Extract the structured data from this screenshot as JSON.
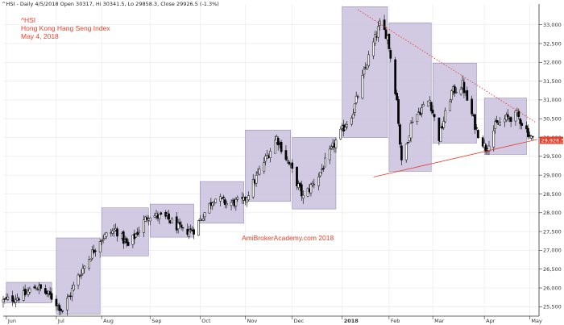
{
  "header": {
    "quote_line": "^HSI - Daily 4/5/2018 Open 30317, Hi 30341.5, Lo 29858.3, Close 29926.5 (-1.3%)",
    "symbol": "^HSI",
    "name": "Hong Kong Hang Seng Index",
    "date": "May 4, 2018"
  },
  "watermark": "AmiBrokerAcademy.com  2018",
  "last_price_label": "29,926.5",
  "colors": {
    "box_fill": "#c9c1dd",
    "box_stroke": "#8a7fb0",
    "up_candle": "#ffffff",
    "down_candle": "#000000",
    "trendline": "#e8402c",
    "price_tag": "#e8402c",
    "grid": "#e8e8e8"
  },
  "chart_data": {
    "type": "candlestick",
    "title": "Hong Kong Hang Seng Index",
    "ylim": [
      25250,
      33550
    ],
    "y_ticks": [
      25500,
      26000,
      26500,
      27000,
      27500,
      28000,
      28500,
      29000,
      29500,
      30000,
      30500,
      31000,
      31500,
      32000,
      32500,
      33000
    ],
    "y_tick_labels": [
      "25,500",
      "26,000",
      "26,500",
      "27,000",
      "27,500",
      "28,000",
      "28,500",
      "29,000",
      "29,500",
      "30,000",
      "30,500",
      "31,000",
      "31,500",
      "32,000",
      "32,500",
      "33,000"
    ],
    "x_domain": [
      "2017-05-30",
      "2018-05-08"
    ],
    "x_ticks": [
      {
        "label": "Jun",
        "date": "2017-06-01"
      },
      {
        "label": "Jul",
        "date": "2017-07-03"
      },
      {
        "label": "Aug",
        "date": "2017-08-01"
      },
      {
        "label": "Sep",
        "date": "2017-09-01"
      },
      {
        "label": "Oct",
        "date": "2017-10-03"
      },
      {
        "label": "Nov",
        "date": "2017-11-01"
      },
      {
        "label": "Dec",
        "date": "2017-12-01"
      },
      {
        "label": "2018",
        "date": "2018-01-02"
      },
      {
        "label": "Feb",
        "date": "2018-02-01"
      },
      {
        "label": "Mar",
        "date": "2018-03-01"
      },
      {
        "label": "Apr",
        "date": "2018-04-03"
      },
      {
        "label": "May",
        "date": "2018-05-02"
      }
    ],
    "range_boxes": [
      {
        "start": "2017-06-01",
        "end": "2017-06-30",
        "low": 25600,
        "high": 26150
      },
      {
        "start": "2017-07-03",
        "end": "2017-07-31",
        "low": 25300,
        "high": 27330
      },
      {
        "start": "2017-08-01",
        "end": "2017-08-31",
        "low": 26850,
        "high": 28130
      },
      {
        "start": "2017-09-01",
        "end": "2017-09-29",
        "low": 27350,
        "high": 28230
      },
      {
        "start": "2017-10-03",
        "end": "2017-10-31",
        "low": 27720,
        "high": 28830
      },
      {
        "start": "2017-11-01",
        "end": "2017-11-30",
        "low": 28300,
        "high": 30200
      },
      {
        "start": "2017-12-01",
        "end": "2017-12-29",
        "low": 28100,
        "high": 30000
      },
      {
        "start": "2018-01-02",
        "end": "2018-01-31",
        "low": 30000,
        "high": 33480
      },
      {
        "start": "2018-02-01",
        "end": "2018-02-28",
        "low": 29100,
        "high": 33050
      },
      {
        "start": "2018-03-01",
        "end": "2018-03-29",
        "low": 29850,
        "high": 31980
      },
      {
        "start": "2018-04-03",
        "end": "2018-04-30",
        "low": 29550,
        "high": 31050
      }
    ],
    "trendlines": [
      {
        "style": "dotted",
        "start": {
          "date": "2018-01-12",
          "value": 33400
        },
        "end": {
          "date": "2018-05-06",
          "value": 30400
        }
      },
      {
        "style": "solid",
        "start": {
          "date": "2018-01-22",
          "value": 28950
        },
        "end": {
          "date": "2018-05-07",
          "value": 29950
        }
      }
    ],
    "monthly_path": [
      {
        "date": "2017-05-30",
        "value": 25650
      },
      {
        "date": "2017-06-12",
        "value": 25800
      },
      {
        "date": "2017-06-20",
        "value": 26050
      },
      {
        "date": "2017-06-30",
        "value": 25750
      },
      {
        "date": "2017-07-07",
        "value": 25400
      },
      {
        "date": "2017-07-17",
        "value": 26300
      },
      {
        "date": "2017-07-31",
        "value": 27300
      },
      {
        "date": "2017-08-10",
        "value": 27550
      },
      {
        "date": "2017-08-18",
        "value": 27100
      },
      {
        "date": "2017-08-31",
        "value": 27950
      },
      {
        "date": "2017-09-12",
        "value": 27850
      },
      {
        "date": "2017-09-22",
        "value": 27500
      },
      {
        "date": "2017-09-29",
        "value": 27550
      },
      {
        "date": "2017-10-12",
        "value": 28400
      },
      {
        "date": "2017-10-20",
        "value": 28250
      },
      {
        "date": "2017-10-31",
        "value": 28300
      },
      {
        "date": "2017-11-10",
        "value": 29100
      },
      {
        "date": "2017-11-21",
        "value": 30000
      },
      {
        "date": "2017-11-30",
        "value": 29200
      },
      {
        "date": "2017-12-08",
        "value": 28400
      },
      {
        "date": "2017-12-18",
        "value": 29000
      },
      {
        "date": "2017-12-29",
        "value": 29900
      },
      {
        "date": "2018-01-09",
        "value": 30700
      },
      {
        "date": "2018-01-18",
        "value": 32000
      },
      {
        "date": "2018-01-26",
        "value": 33000
      },
      {
        "date": "2018-01-31",
        "value": 32700
      },
      {
        "date": "2018-02-06",
        "value": 31000
      },
      {
        "date": "2018-02-09",
        "value": 29300
      },
      {
        "date": "2018-02-16",
        "value": 30500
      },
      {
        "date": "2018-02-27",
        "value": 31000
      },
      {
        "date": "2018-03-05",
        "value": 30000
      },
      {
        "date": "2018-03-13",
        "value": 31200
      },
      {
        "date": "2018-03-20",
        "value": 31400
      },
      {
        "date": "2018-03-26",
        "value": 30600
      },
      {
        "date": "2018-03-29",
        "value": 30200
      },
      {
        "date": "2018-04-04",
        "value": 29700
      },
      {
        "date": "2018-04-10",
        "value": 30300
      },
      {
        "date": "2018-04-17",
        "value": 30500
      },
      {
        "date": "2018-04-24",
        "value": 30600
      },
      {
        "date": "2018-05-04",
        "value": 29926.5
      }
    ],
    "last_close": 29926.5
  }
}
